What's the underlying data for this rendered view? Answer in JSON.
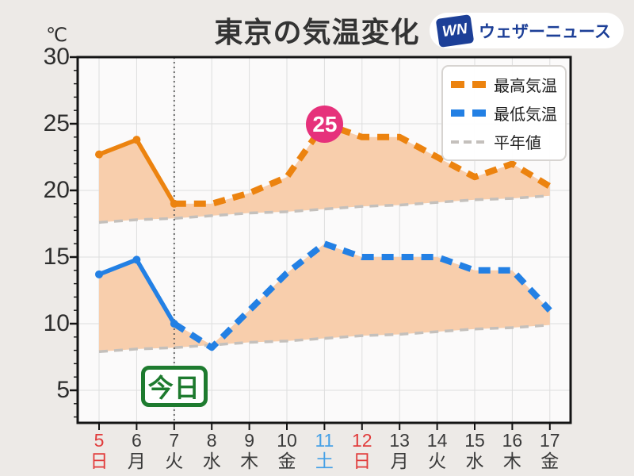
{
  "page": {
    "background": "#EDEAE7",
    "plot_background": "#FBFAFA"
  },
  "title": "東京の気温変化",
  "unit_label": "℃",
  "logo": {
    "mark": "WN",
    "text": "ウェザーニュース",
    "color": "#1C3F97"
  },
  "legend": {
    "position": "top-right",
    "items": [
      {
        "label": "最高気温",
        "color": "#EC830F",
        "style": "thick-dash"
      },
      {
        "label": "最低気温",
        "color": "#2380E4",
        "style": "thick-dash"
      },
      {
        "label": "平年値",
        "color": "#C4C0BC",
        "style": "thin-dash"
      }
    ]
  },
  "chart_data": {
    "type": "line",
    "title": "東京の気温変化",
    "ylabel": "℃",
    "ylim": [
      2.5,
      30
    ],
    "yticks": [
      5,
      10,
      15,
      20,
      25,
      30
    ],
    "grid": true,
    "x": [
      5,
      6,
      7,
      8,
      9,
      10,
      11,
      12,
      13,
      14,
      15,
      16,
      17
    ],
    "x_weekdays": [
      "日",
      "月",
      "火",
      "水",
      "木",
      "金",
      "土",
      "日",
      "月",
      "火",
      "水",
      "木",
      "金"
    ],
    "series": [
      {
        "name": "最高気温",
        "color": "#EC830F",
        "role": "actual-max",
        "values": [
          22.7,
          23.8,
          19,
          19,
          19.8,
          21,
          25,
          24,
          24,
          22.5,
          21,
          22,
          20.3
        ]
      },
      {
        "name": "最低気温",
        "color": "#2380E4",
        "role": "actual-min",
        "values": [
          13.7,
          14.8,
          10,
          8.2,
          11,
          13.8,
          16,
          15,
          15,
          15,
          14,
          14,
          11
        ]
      },
      {
        "name": "平年値(最高)",
        "color": "#C4C0BC",
        "role": "normal-max",
        "values": [
          17.6,
          17.8,
          17.9,
          18.1,
          18.3,
          18.4,
          18.6,
          18.8,
          18.9,
          19.1,
          19.3,
          19.4,
          19.6
        ]
      },
      {
        "name": "平年値(最低)",
        "color": "#C4C0BC",
        "role": "normal-min",
        "values": [
          7.9,
          8.1,
          8.2,
          8.4,
          8.6,
          8.7,
          8.9,
          9.1,
          9.2,
          9.4,
          9.6,
          9.7,
          9.9
        ]
      }
    ],
    "observed_through_x": 7,
    "fill_color": "#F8CEAC",
    "annotation": {
      "x": 11,
      "value": 25,
      "label": "25",
      "color": "#E6317B"
    },
    "today": {
      "x": 7,
      "label": "今日",
      "color": "#1E7B2F"
    },
    "weekday_colors": {
      "日": "#E13B3B",
      "土": "#45A0E6",
      "default": "#3A3A3A"
    }
  }
}
